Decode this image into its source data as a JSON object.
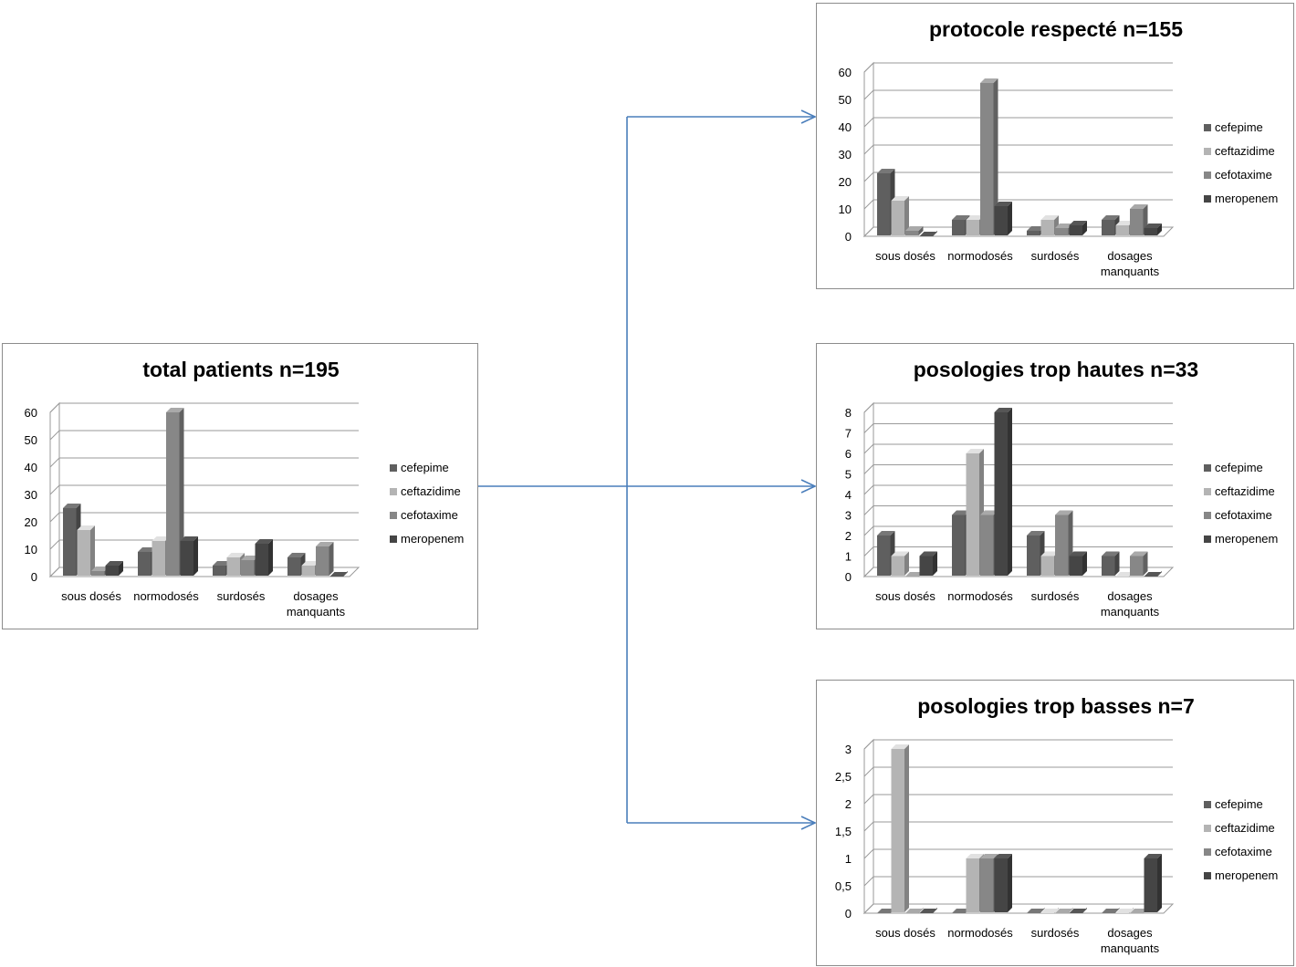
{
  "colors": {
    "cefepime": "#5f5f5f",
    "ceftazidime": "#b4b4b4",
    "cefotaxime": "#878787",
    "meropenem": "#454545",
    "connector": "#4a7ebb"
  },
  "chart_data": [
    {
      "id": "total",
      "type": "bar",
      "title": "total patients n=195",
      "categories": [
        "sous dosés",
        "normodosés",
        "surdosés",
        "dosages\nmanquants"
      ],
      "series": [
        {
          "name": "cefepime",
          "values": [
            25,
            9,
            4,
            7
          ]
        },
        {
          "name": "ceftazidime",
          "values": [
            17,
            13,
            7,
            4
          ]
        },
        {
          "name": "cefotaxime",
          "values": [
            2,
            60,
            6,
            11
          ]
        },
        {
          "name": "meropenem",
          "values": [
            4,
            13,
            12,
            0
          ]
        }
      ],
      "ylim": [
        0,
        60
      ],
      "yticks": [
        0,
        10,
        20,
        30,
        40,
        50,
        60
      ],
      "ytick_labels": [
        "0",
        "10",
        "20",
        "30",
        "40",
        "50",
        "60"
      ],
      "legend": "right",
      "grid": true
    },
    {
      "id": "resp",
      "type": "bar",
      "title": "protocole respecté n=155",
      "categories": [
        "sous dosés",
        "normodosés",
        "surdosés",
        "dosages\nmanquants"
      ],
      "series": [
        {
          "name": "cefepime",
          "values": [
            23,
            6,
            2,
            6
          ]
        },
        {
          "name": "ceftazidime",
          "values": [
            13,
            6,
            6,
            4
          ]
        },
        {
          "name": "cefotaxime",
          "values": [
            2,
            56,
            3,
            10
          ]
        },
        {
          "name": "meropenem",
          "values": [
            0,
            11,
            4,
            3
          ]
        }
      ],
      "ylim": [
        0,
        60
      ],
      "yticks": [
        0,
        10,
        20,
        30,
        40,
        50,
        60
      ],
      "ytick_labels": [
        "0",
        "10",
        "20",
        "30",
        "40",
        "50",
        "60"
      ],
      "legend": "right",
      "grid": true
    },
    {
      "id": "hautes",
      "type": "bar",
      "title": "posologies trop hautes n=33",
      "categories": [
        "sous dosés",
        "normodosés",
        "surdosés",
        "dosages\nmanquants"
      ],
      "series": [
        {
          "name": "cefepime",
          "values": [
            2,
            3,
            2,
            1
          ]
        },
        {
          "name": "ceftazidime",
          "values": [
            1,
            6,
            1,
            0
          ]
        },
        {
          "name": "cefotaxime",
          "values": [
            0,
            3,
            3,
            1
          ]
        },
        {
          "name": "meropenem",
          "values": [
            1,
            8,
            1,
            0
          ]
        }
      ],
      "ylim": [
        0,
        8
      ],
      "yticks": [
        0,
        1,
        2,
        3,
        4,
        5,
        6,
        7,
        8
      ],
      "ytick_labels": [
        "0",
        "1",
        "2",
        "3",
        "4",
        "5",
        "6",
        "7",
        "8"
      ],
      "legend": "right",
      "grid": true
    },
    {
      "id": "basses",
      "type": "bar",
      "title": "posologies trop basses n=7",
      "categories": [
        "sous dosés",
        "normodosés",
        "surdosés",
        "dosages\nmanquants"
      ],
      "series": [
        {
          "name": "cefepime",
          "values": [
            0,
            0,
            0,
            0
          ]
        },
        {
          "name": "ceftazidime",
          "values": [
            3,
            1,
            0,
            0
          ]
        },
        {
          "name": "cefotaxime",
          "values": [
            0,
            1,
            0,
            0
          ]
        },
        {
          "name": "meropenem",
          "values": [
            0,
            1,
            0,
            1
          ]
        }
      ],
      "ylim": [
        0,
        3
      ],
      "yticks": [
        0,
        0.5,
        1,
        1.5,
        2,
        2.5,
        3
      ],
      "ytick_labels": [
        "0",
        "0,5",
        "1",
        "1,5",
        "2",
        "2,5",
        "3"
      ],
      "legend": "right",
      "grid": true
    }
  ]
}
